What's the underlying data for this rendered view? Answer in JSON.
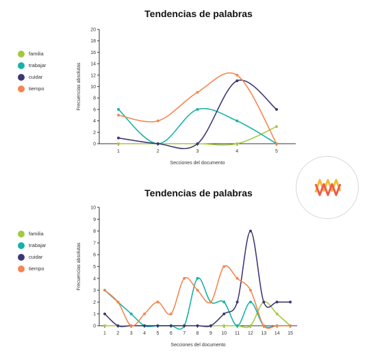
{
  "colors": {
    "familia": "#a3c940",
    "trabajar": "#17b2a6",
    "cuidar": "#3d3875",
    "tiempo": "#f5864f"
  },
  "badge": {
    "icon": "zigzag-lines-icon"
  },
  "chart_data": [
    {
      "type": "line",
      "title": "Tendencias de palabras",
      "xlabel": "Secciones del documento",
      "ylabel": "Frecuencias absolutas",
      "x": [
        1,
        2,
        3,
        4,
        5
      ],
      "ylim": [
        0,
        20
      ],
      "yticks": [
        0,
        2,
        4,
        6,
        8,
        10,
        12,
        14,
        16,
        18,
        20
      ],
      "legend_position": "left",
      "series": [
        {
          "name": "familia",
          "values": [
            0,
            0,
            0,
            0,
            3
          ]
        },
        {
          "name": "trabajar",
          "values": [
            6,
            0,
            6,
            4,
            0
          ]
        },
        {
          "name": "cuidar",
          "values": [
            1,
            0,
            0,
            11,
            6
          ]
        },
        {
          "name": "tiempo",
          "values": [
            5,
            4,
            9,
            12,
            0
          ]
        }
      ]
    },
    {
      "type": "line",
      "title": "Tendencias de palabras",
      "xlabel": "Secciones del documento",
      "ylabel": "Frecuencias absolutas",
      "x": [
        1,
        2,
        3,
        4,
        5,
        6,
        7,
        8,
        9,
        10,
        11,
        12,
        13,
        14,
        15
      ],
      "ylim": [
        0,
        10
      ],
      "yticks": [
        0,
        1,
        2,
        3,
        4,
        5,
        6,
        7,
        8,
        9,
        10
      ],
      "legend_position": "left",
      "series": [
        {
          "name": "familia",
          "values": [
            0,
            0,
            0,
            0,
            0,
            0,
            0,
            0,
            0,
            0,
            0,
            0,
            2,
            1,
            0
          ]
        },
        {
          "name": "trabajar",
          "values": [
            3,
            2,
            1,
            0,
            0,
            0,
            0,
            4,
            2,
            2,
            0,
            2,
            0,
            0,
            0
          ]
        },
        {
          "name": "cuidar",
          "values": [
            1,
            0,
            0,
            0,
            0,
            0,
            0,
            0,
            0,
            1,
            2,
            8,
            2,
            2,
            2
          ]
        },
        {
          "name": "tiempo",
          "values": [
            3,
            2,
            0,
            1,
            2,
            1,
            4,
            3,
            2,
            5,
            4,
            3,
            0,
            0,
            0
          ]
        }
      ]
    }
  ]
}
